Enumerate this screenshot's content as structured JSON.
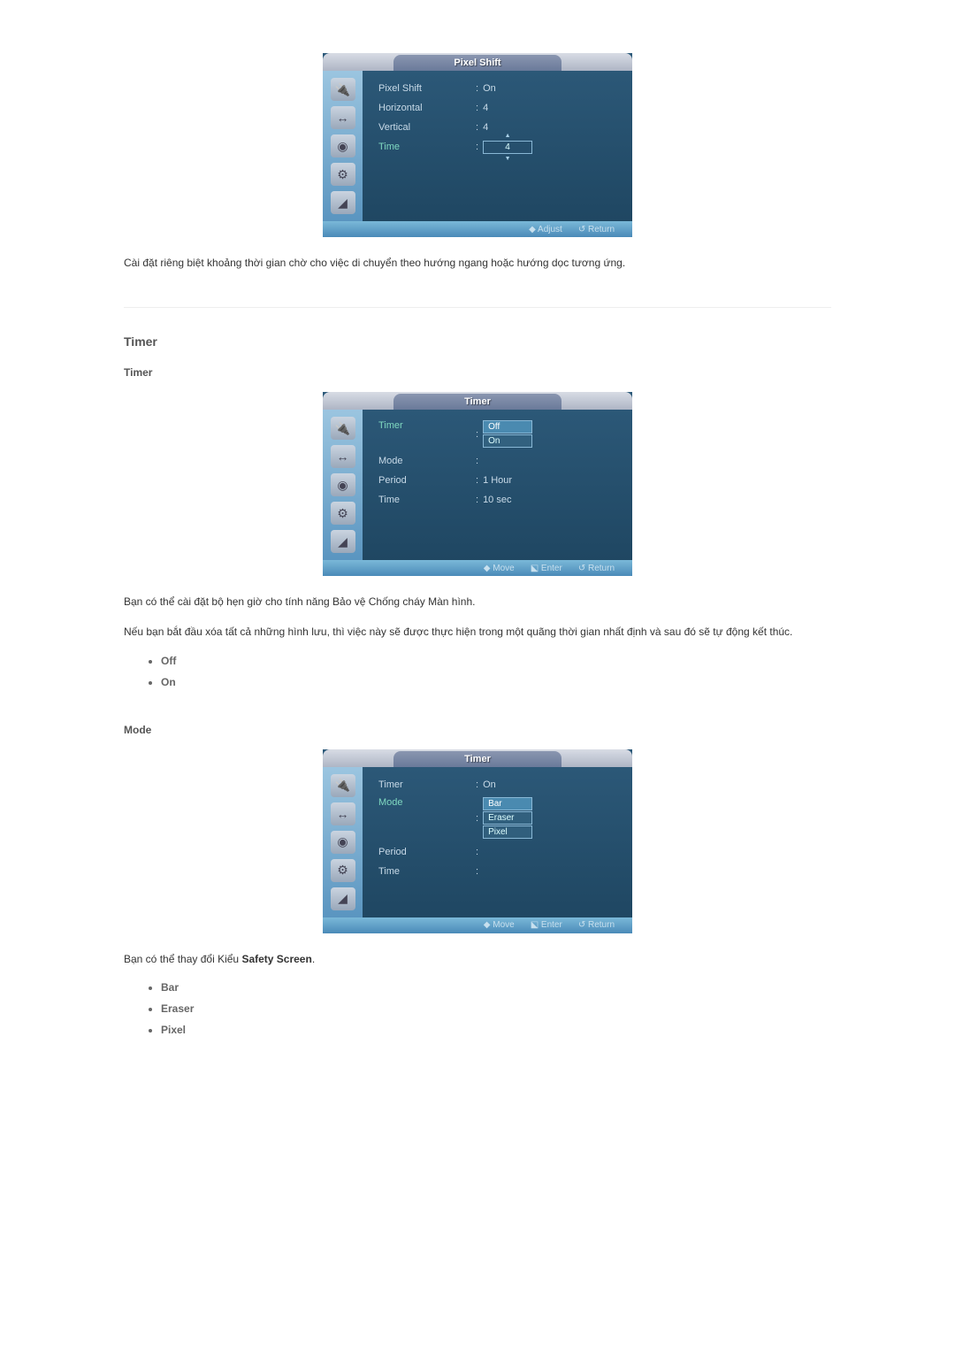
{
  "osd1": {
    "title": "Pixel Shift",
    "rows": [
      {
        "label": "Pixel Shift",
        "value": "On",
        "type": "text",
        "hl": false
      },
      {
        "label": "Horizontal",
        "value": "4",
        "type": "text",
        "hl": false
      },
      {
        "label": "Vertical",
        "value": "4",
        "type": "text",
        "hl": false
      },
      {
        "label": "Time",
        "value": "4",
        "type": "spinner",
        "hl": true
      }
    ],
    "footer": [
      {
        "icon": "◆",
        "label": "Adjust"
      },
      {
        "icon": "↺",
        "label": "Return"
      }
    ]
  },
  "desc1": "Cài đặt riêng biệt khoảng thời gian chờ cho việc di chuyển theo hướng ngang hoặc hướng dọc tương ứng.",
  "heading_timer": "Timer",
  "subheading_timer": "Timer",
  "osd2": {
    "title": "Timer",
    "rows": [
      {
        "label": "Timer",
        "value": "Off",
        "type": "select",
        "hl": true,
        "options": [
          "Off",
          "On"
        ]
      },
      {
        "label": "Mode",
        "value": "",
        "type": "text",
        "hl": false
      },
      {
        "label": "Period",
        "value": "1 Hour",
        "type": "text",
        "hl": false
      },
      {
        "label": "Time",
        "value": "10 sec",
        "type": "text",
        "hl": false
      }
    ],
    "footer": [
      {
        "icon": "◆",
        "label": "Move"
      },
      {
        "icon": "⬕",
        "label": "Enter"
      },
      {
        "icon": "↺",
        "label": "Return"
      }
    ]
  },
  "desc2a": "Bạn có thể cài đặt bộ hẹn giờ cho tính năng Bảo vệ Chống cháy Màn hình.",
  "desc2b": "Nếu bạn bắt đầu xóa tất cả những hình lưu, thì việc này sẽ được thực hiện trong một quãng thời gian nhất định và sau đó sẽ tự động kết thúc.",
  "opts_timer": [
    "Off",
    "On"
  ],
  "subheading_mode": "Mode",
  "osd3": {
    "title": "Timer",
    "rows": [
      {
        "label": "Timer",
        "value": "On",
        "type": "text",
        "hl": false
      },
      {
        "label": "Mode",
        "value": "Bar",
        "type": "select",
        "hl": true,
        "options": [
          "Bar",
          "Eraser",
          "Pixel"
        ]
      },
      {
        "label": "Period",
        "value": "",
        "type": "text",
        "hl": false
      },
      {
        "label": "Time",
        "value": "",
        "type": "text",
        "hl": false
      }
    ],
    "footer": [
      {
        "icon": "◆",
        "label": "Move"
      },
      {
        "icon": "⬕",
        "label": "Enter"
      },
      {
        "icon": "↺",
        "label": "Return"
      }
    ]
  },
  "desc3_pre": "Bạn có thể thay đổi Kiểu ",
  "desc3_bold": "Safety Screen",
  "desc3_post": ".",
  "opts_mode": [
    "Bar",
    "Eraser",
    "Pixel"
  ],
  "sidebar_icons": [
    "🔌",
    "↔",
    "◉",
    "⚙",
    "◢"
  ]
}
